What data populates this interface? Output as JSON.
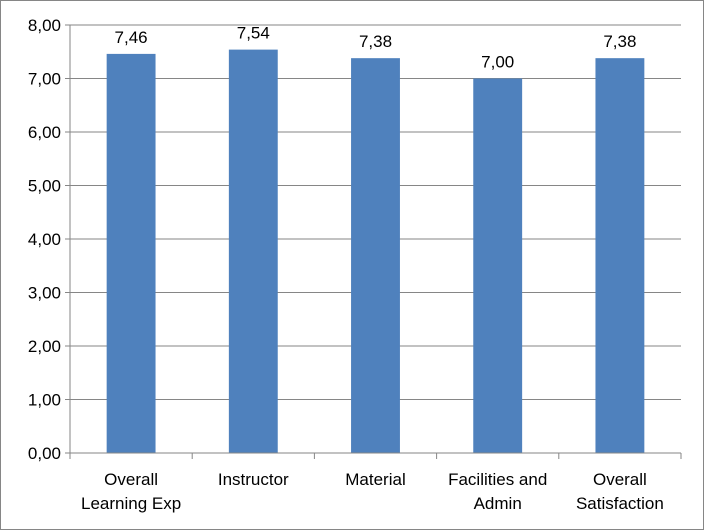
{
  "chart_data": {
    "type": "bar",
    "categories": [
      [
        "Overall",
        "Learning Exp"
      ],
      [
        "Instructor"
      ],
      [
        "Material"
      ],
      [
        "Facilities and",
        "Admin"
      ],
      [
        "Overall",
        "Satisfaction"
      ]
    ],
    "values": [
      7.46,
      7.54,
      7.38,
      7.0,
      7.38
    ],
    "value_labels": [
      "7,46",
      "7,54",
      "7,38",
      "7,00",
      "7,38"
    ],
    "ylim": [
      0,
      8
    ],
    "y_ticks": [
      0,
      1,
      2,
      3,
      4,
      5,
      6,
      7,
      8
    ],
    "y_tick_labels": [
      "0,00",
      "1,00",
      "2,00",
      "3,00",
      "4,00",
      "5,00",
      "6,00",
      "7,00",
      "8,00"
    ],
    "grid": true,
    "legend": "none",
    "bar_color": "#4f81bd",
    "grid_color": "#868686"
  }
}
